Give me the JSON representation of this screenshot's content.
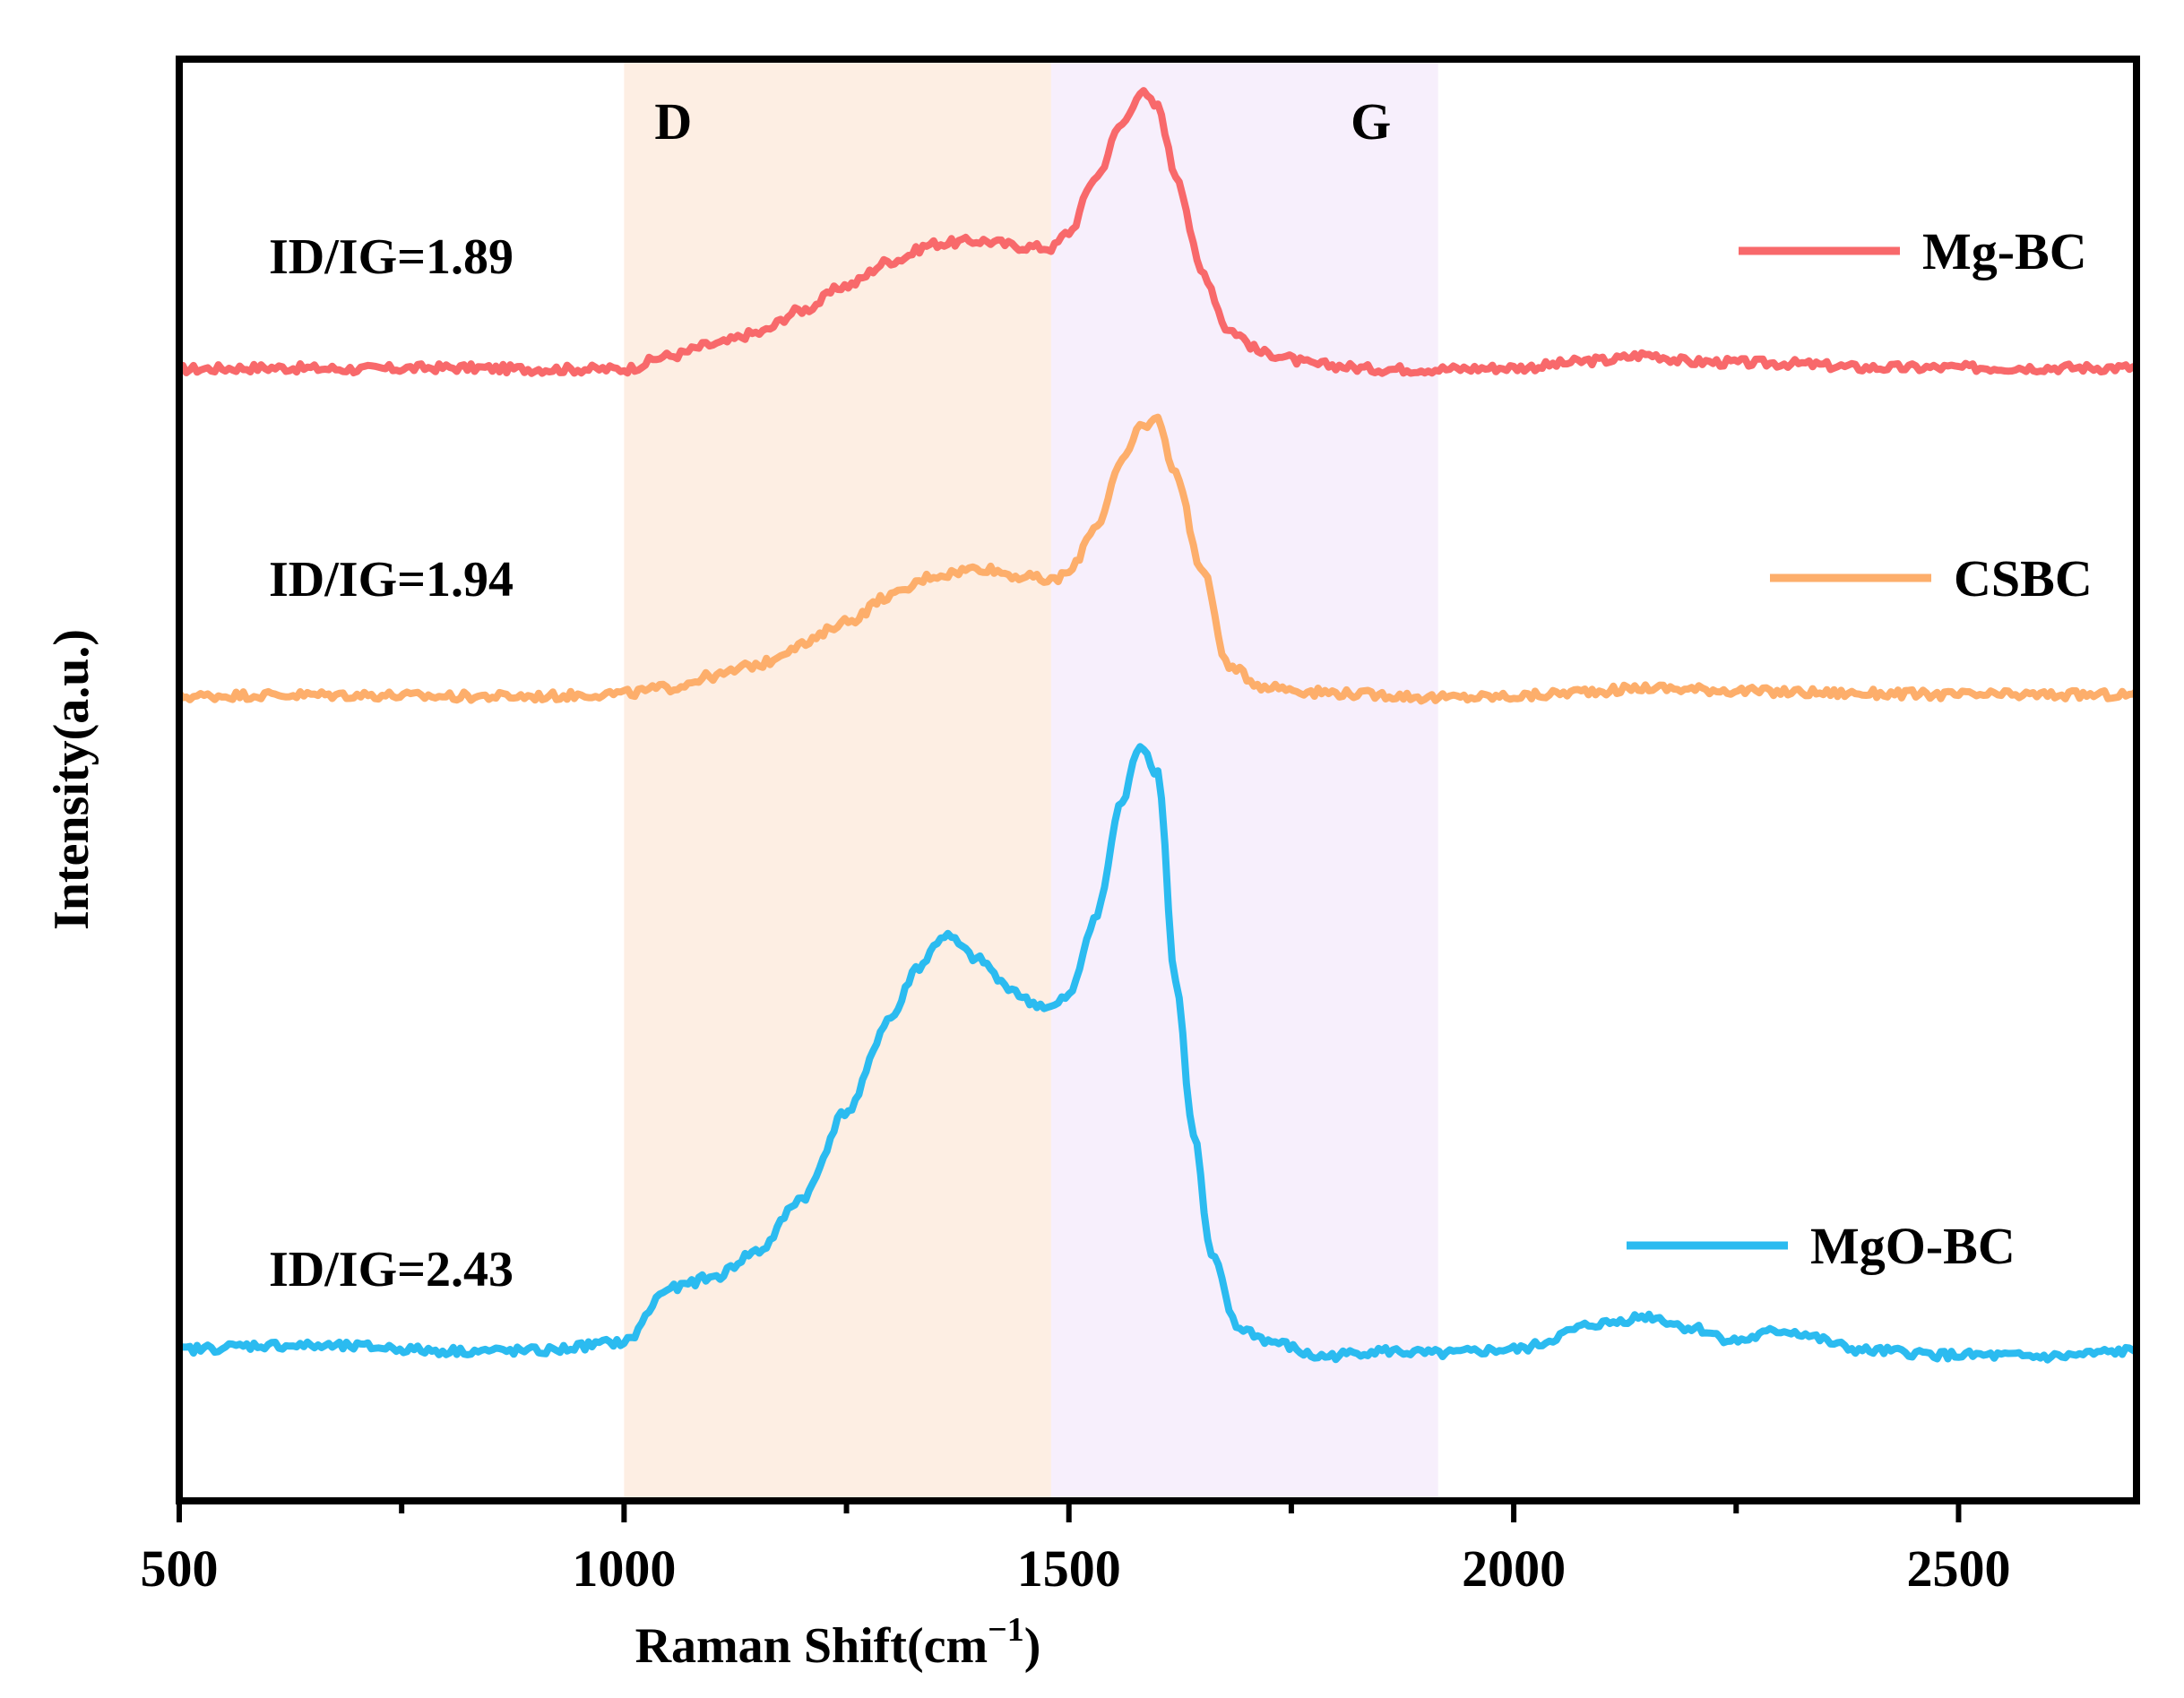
{
  "chart_data": {
    "type": "line",
    "title": "",
    "xlabel": "Raman Shift(cm",
    "xlabel_superscript": "−1",
    "xlabel_close": ")",
    "ylabel": "Intensity(a.u.)",
    "xlim": [
      500,
      2700
    ],
    "x_ticks": [
      500,
      1000,
      1500,
      2000,
      2500
    ],
    "x_minor_step": 250,
    "y_ticks": [],
    "grid": false,
    "legend_position": "right",
    "bands": [
      {
        "name": "D",
        "label": "D",
        "x_start": 1000,
        "x_end": 1480,
        "color": "#fdeee3"
      },
      {
        "name": "G",
        "label": "G",
        "x_start": 1480,
        "x_end": 1915,
        "color": "#f7effc"
      }
    ],
    "series": [
      {
        "name": "Mg-BC",
        "color": "#f8696b",
        "annotation": "ID/IG=1.89",
        "y_range": [
          0.78,
          1.0
        ],
        "x": [
          500,
          600,
          700,
          800,
          900,
          1000,
          1050,
          1100,
          1150,
          1200,
          1250,
          1300,
          1350,
          1400,
          1450,
          1480,
          1500,
          1530,
          1560,
          1580,
          1600,
          1620,
          1650,
          1680,
          1720,
          1780,
          1850,
          1915,
          2000,
          2100,
          2150,
          2200,
          2300,
          2400,
          2500,
          2600,
          2700
        ],
        "values": [
          0.785,
          0.786,
          0.785,
          0.786,
          0.785,
          0.785,
          0.794,
          0.802,
          0.81,
          0.826,
          0.843,
          0.86,
          0.872,
          0.874,
          0.87,
          0.869,
          0.88,
          0.918,
          0.955,
          0.977,
          0.967,
          0.92,
          0.852,
          0.812,
          0.796,
          0.788,
          0.785,
          0.785,
          0.786,
          0.791,
          0.795,
          0.79,
          0.789,
          0.786,
          0.786,
          0.786,
          0.786
        ]
      },
      {
        "name": "CSBC",
        "color": "#fdae6b",
        "annotation": "ID/IG=1.94",
        "y_range": [
          0.55,
          0.77
        ],
        "x": [
          500,
          600,
          700,
          800,
          900,
          1000,
          1050,
          1100,
          1150,
          1200,
          1250,
          1300,
          1350,
          1400,
          1450,
          1480,
          1500,
          1530,
          1560,
          1580,
          1600,
          1620,
          1650,
          1680,
          1720,
          1780,
          1850,
          1915,
          2000,
          2100,
          2150,
          2200,
          2300,
          2400,
          2500,
          2600,
          2700
        ],
        "values": [
          0.558,
          0.559,
          0.559,
          0.558,
          0.558,
          0.56,
          0.564,
          0.572,
          0.58,
          0.594,
          0.61,
          0.628,
          0.642,
          0.647,
          0.641,
          0.638,
          0.644,
          0.676,
          0.72,
          0.745,
          0.75,
          0.712,
          0.645,
          0.578,
          0.565,
          0.561,
          0.559,
          0.557,
          0.558,
          0.562,
          0.564,
          0.563,
          0.561,
          0.56,
          0.559,
          0.559,
          0.559
        ]
      },
      {
        "name": "MgO-BC",
        "color": "#2bbbf0",
        "annotation": "ID/IG=2.43",
        "y_range": [
          0.07,
          0.52
        ],
        "x": [
          500,
          600,
          700,
          800,
          900,
          1000,
          1050,
          1100,
          1150,
          1200,
          1250,
          1300,
          1330,
          1360,
          1400,
          1430,
          1460,
          1480,
          1500,
          1530,
          1560,
          1580,
          1600,
          1620,
          1640,
          1660,
          1690,
          1730,
          1780,
          1850,
          1915,
          2000,
          2100,
          2150,
          2200,
          2250,
          2300,
          2400,
          2500,
          2600,
          2700
        ],
        "values": [
          0.105,
          0.108,
          0.107,
          0.104,
          0.104,
          0.11,
          0.147,
          0.155,
          0.173,
          0.21,
          0.27,
          0.335,
          0.37,
          0.392,
          0.375,
          0.357,
          0.345,
          0.342,
          0.35,
          0.405,
          0.485,
          0.525,
          0.505,
          0.36,
          0.255,
          0.17,
          0.12,
          0.11,
          0.1,
          0.104,
          0.102,
          0.105,
          0.123,
          0.128,
          0.12,
          0.111,
          0.118,
          0.104,
          0.101,
          0.1,
          0.104
        ]
      }
    ]
  }
}
